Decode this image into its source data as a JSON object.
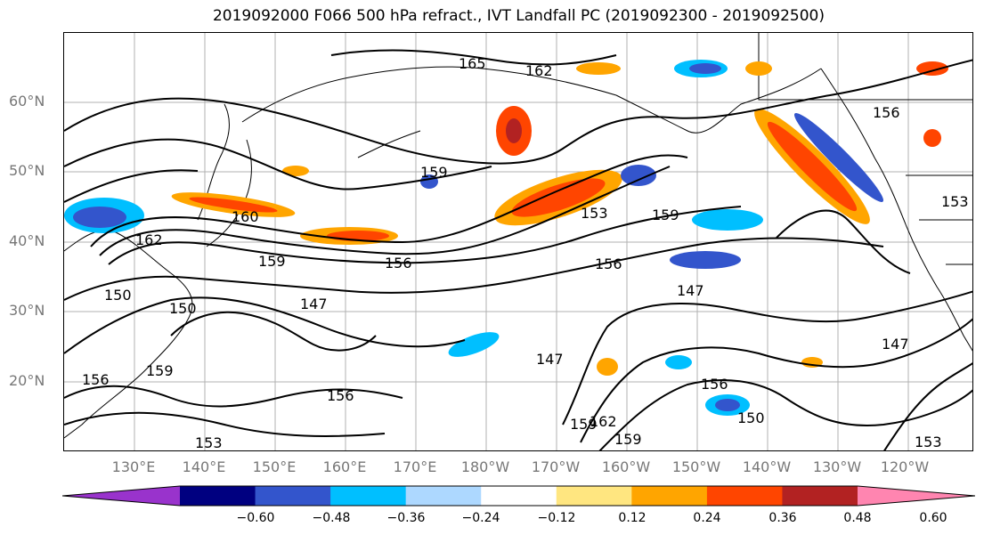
{
  "title": "2019092000 F066 500 hPa refract., IVT Landfall PC (2019092300 - 2019092500)",
  "lat_labels": [
    "60°N",
    "50°N",
    "40°N",
    "30°N",
    "20°N"
  ],
  "lon_labels": [
    "130°E",
    "140°E",
    "150°E",
    "160°E",
    "170°E",
    "180°W",
    "170°W",
    "160°W",
    "150°W",
    "140°W",
    "130°W",
    "120°W"
  ],
  "colorbar": {
    "ticks": [
      "−0.60",
      "−0.48",
      "−0.36",
      "−0.24",
      "−0.12",
      "0.12",
      "0.24",
      "0.36",
      "0.48",
      "0.60"
    ],
    "colors": [
      "#9933cc",
      "#000080",
      "#3355cc",
      "#00bfff",
      "#add8ff",
      "#ffffff",
      "#ffe680",
      "#ffa500",
      "#ff4500",
      "#b22222",
      "#ff85b0"
    ]
  },
  "contour_labels": [
    "165",
    "162",
    "159",
    "160",
    "162",
    "159",
    "156",
    "153",
    "159",
    "156",
    "150",
    "147",
    "147",
    "147",
    "150",
    "156",
    "159",
    "156",
    "153",
    "159",
    "162",
    "159",
    "150",
    "156",
    "147",
    "156",
    "153",
    "153"
  ]
}
